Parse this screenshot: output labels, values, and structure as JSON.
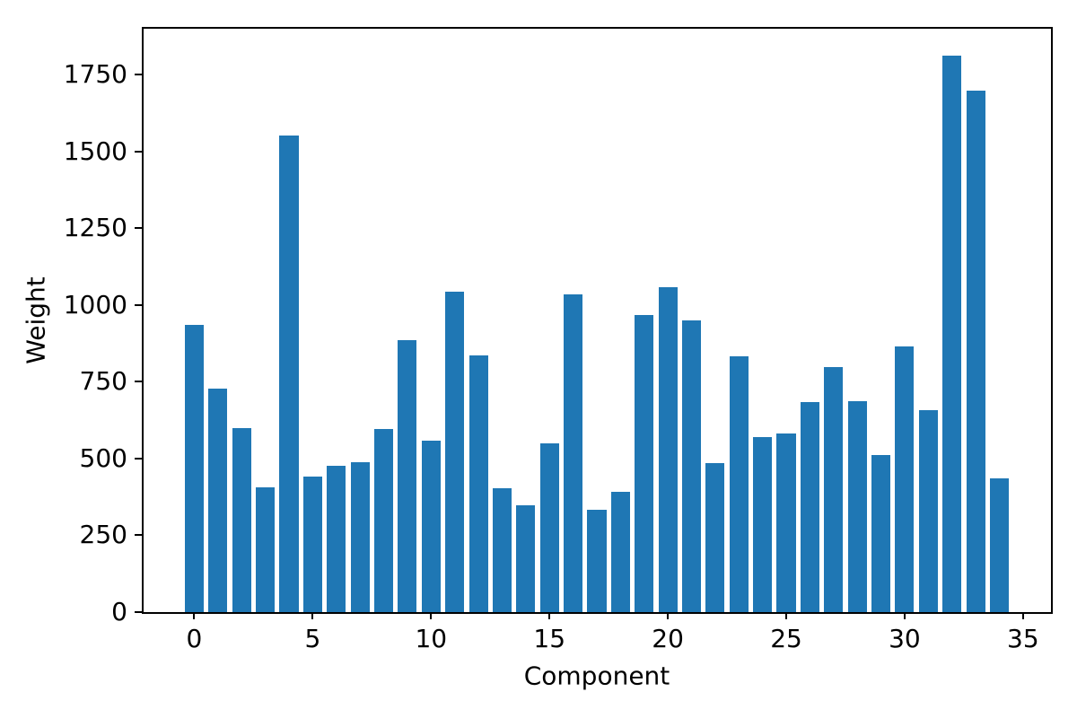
{
  "chart_data": {
    "type": "bar",
    "title": "",
    "xlabel": "Component",
    "ylabel": "Weight",
    "categories": [
      0,
      1,
      2,
      3,
      4,
      5,
      6,
      7,
      8,
      9,
      10,
      11,
      12,
      13,
      14,
      15,
      16,
      17,
      18,
      19,
      20,
      21,
      22,
      23,
      24,
      25,
      26,
      27,
      28,
      29,
      30,
      31,
      32,
      33,
      34
    ],
    "values": [
      935,
      728,
      598,
      405,
      1552,
      442,
      476,
      487,
      595,
      885,
      558,
      1043,
      836,
      403,
      347,
      551,
      1034,
      334,
      393,
      968,
      1058,
      950,
      486,
      834,
      570,
      582,
      685,
      799,
      688,
      512,
      866,
      658,
      1812,
      1699,
      437
    ],
    "bar_color": "#1f77b4",
    "xticks": [
      0,
      5,
      10,
      15,
      20,
      25,
      30,
      35
    ],
    "yticks": [
      0,
      250,
      500,
      750,
      1000,
      1250,
      1500,
      1750
    ],
    "xlim": [
      -2.14,
      36.18
    ],
    "ylim": [
      0,
      1900
    ],
    "bar_width_units": 0.8,
    "grid": false,
    "legend_position": "none"
  }
}
